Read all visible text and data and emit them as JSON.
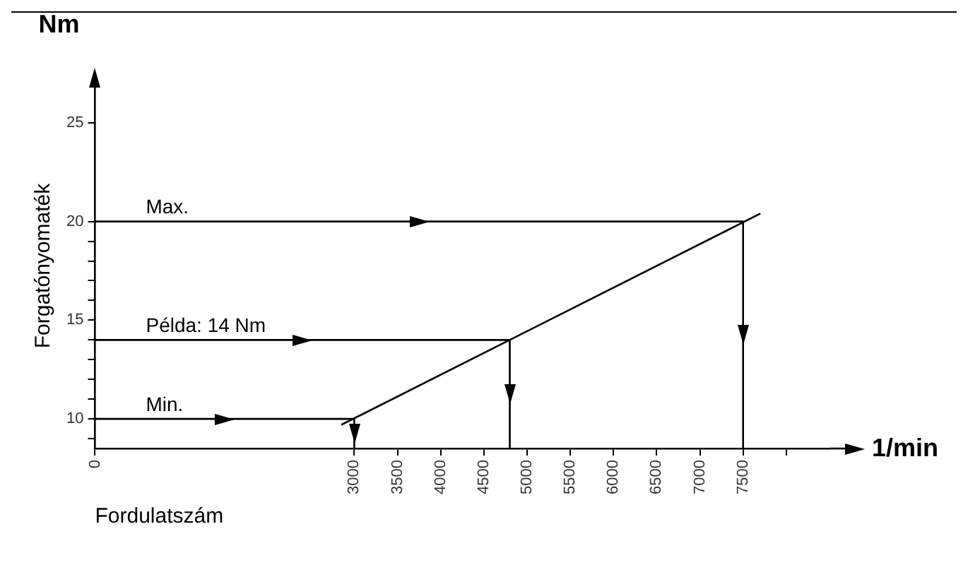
{
  "chart_data": {
    "type": "line",
    "xlabel": "Fordulatszám",
    "ylabel": "Forgatónyomaték",
    "xlim": [
      0,
      8500
    ],
    "xticks": [
      0,
      3000,
      3500,
      4000,
      4500,
      5000,
      5500,
      6000,
      6500,
      7000,
      7500,
      {
        "value": 8000,
        "label": null
      }
    ],
    "ylim": [
      8.5,
      27
    ],
    "yticks": [
      {
        "value": 9,
        "label": null
      },
      10,
      {
        "value": 11,
        "label": null
      },
      {
        "value": 12,
        "label": null
      },
      {
        "value": 13,
        "label": null
      },
      {
        "value": 14,
        "label": null
      },
      15,
      {
        "value": 16,
        "label": null
      },
      {
        "value": 17,
        "label": null
      },
      {
        "value": 18,
        "label": null
      },
      {
        "value": 19,
        "label": null
      },
      20,
      25
    ],
    "legend": false,
    "grid": false,
    "series": [
      {
        "type": "line",
        "color": "#000000",
        "x": [
          2850,
          7700
        ],
        "values": [
          9.7,
          20.4
        ]
      },
      {
        "type": "line",
        "color": "#000000",
        "x": [
          0,
          7500
        ],
        "values": [
          20,
          20
        ]
      },
      {
        "type": "line",
        "color": "#000000",
        "x": [
          7500,
          7500
        ],
        "values": [
          20,
          8.5
        ]
      },
      {
        "type": "line",
        "color": "#000000",
        "x": [
          0,
          4800
        ],
        "values": [
          14,
          14
        ]
      },
      {
        "type": "line",
        "color": "#000000",
        "x": [
          4800,
          4800
        ],
        "values": [
          14,
          8.5
        ]
      },
      {
        "type": "line",
        "color": "#000000",
        "x": [
          0,
          3000
        ],
        "values": [
          10,
          10
        ]
      },
      {
        "type": "line",
        "color": "#000000",
        "x": [
          3000,
          3000
        ],
        "values": [
          10,
          8.5
        ]
      }
    ],
    "annotations": [
      "Nm",
      "1/min",
      {
        "text": "Max.",
        "y": 20
      },
      {
        "text": "Példa: 14 Nm",
        "y": 14
      },
      {
        "text": "Min.",
        "y": 10
      }
    ]
  }
}
